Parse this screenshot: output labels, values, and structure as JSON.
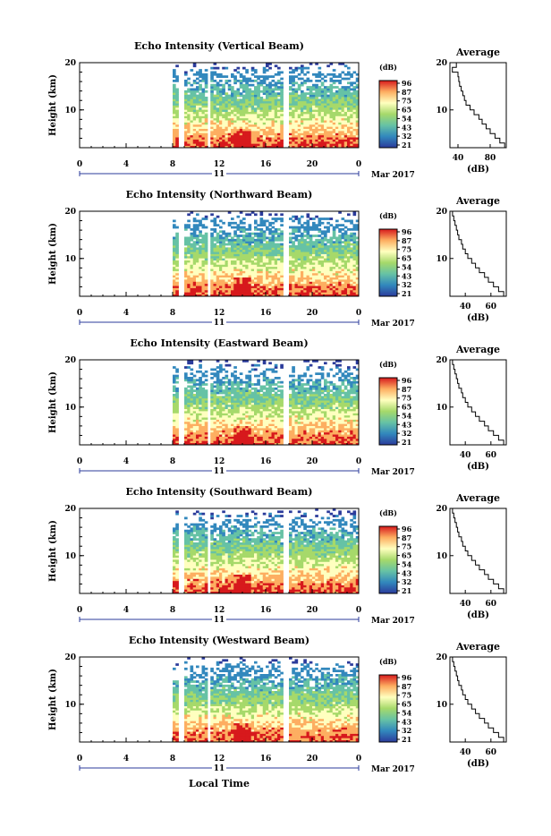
{
  "figure": {
    "x_label": "Local Time",
    "date_label": "Mar 2017",
    "date_marker": "11"
  },
  "colorbar": {
    "unit": "(dB)",
    "ticks": [
      "96",
      "87",
      "75",
      "65",
      "54",
      "43",
      "32",
      "21"
    ],
    "colors": [
      "#d7191c",
      "#fdae61",
      "#ffffbf",
      "#a6d96a",
      "#66c2a5",
      "#3288bd",
      "#2b3b9b"
    ]
  },
  "chart_data": [
    {
      "type": "heatmap",
      "title": "Echo Intensity (Vertical Beam)",
      "ylabel": "Height (km)",
      "xticks": [
        "0",
        "4",
        "8",
        "12",
        "16",
        "20",
        "0"
      ],
      "xlim": [
        0,
        24
      ],
      "ylim": [
        2,
        20
      ],
      "yticks": [
        10,
        20
      ],
      "data_gaps_h": [
        [
          0,
          8.1
        ],
        [
          8.6,
          9.0
        ],
        [
          10.9,
          11.3
        ],
        [
          17.6,
          18.0
        ]
      ],
      "profile": {
        "title": "Average",
        "xlabel": "(dB)",
        "xticks": [
          "40",
          "80"
        ],
        "xlim": [
          30,
          100
        ],
        "heights": [
          2,
          3,
          4,
          5,
          6,
          7,
          8,
          9,
          10,
          11,
          12,
          13,
          14,
          15,
          16,
          17,
          18,
          19,
          20
        ],
        "values": [
          98,
          92,
          86,
          80,
          75,
          70,
          66,
          60,
          55,
          50,
          48,
          46,
          44,
          42,
          41,
          40,
          33,
          38,
          30
        ]
      }
    },
    {
      "type": "heatmap",
      "title": "Echo Intensity (Northward Beam)",
      "ylabel": "Height (km)",
      "xticks": [
        "0",
        "4",
        "8",
        "12",
        "16",
        "20",
        "0"
      ],
      "xlim": [
        0,
        24
      ],
      "ylim": [
        2,
        20
      ],
      "yticks": [
        10,
        20
      ],
      "data_gaps_h": [
        [
          0,
          8.1
        ],
        [
          8.6,
          9.0
        ],
        [
          10.9,
          11.3
        ],
        [
          17.6,
          18.0
        ]
      ],
      "profile": {
        "title": "Average",
        "xlabel": "(dB)",
        "xticks": [
          "40",
          "60"
        ],
        "xlim": [
          28,
          72
        ],
        "heights": [
          2,
          3,
          4,
          5,
          6,
          7,
          8,
          9,
          10,
          11,
          12,
          13,
          14,
          15,
          16,
          17,
          18,
          19,
          20
        ],
        "values": [
          70,
          66,
          62,
          58,
          55,
          51,
          48,
          45,
          42,
          40,
          38,
          37,
          35,
          34,
          33,
          32,
          31,
          30,
          30
        ]
      }
    },
    {
      "type": "heatmap",
      "title": "Echo Intensity (Eastward Beam)",
      "ylabel": "Height (km)",
      "xticks": [
        "0",
        "4",
        "8",
        "12",
        "16",
        "20",
        "0"
      ],
      "xlim": [
        0,
        24
      ],
      "ylim": [
        2,
        20
      ],
      "yticks": [
        10,
        20
      ],
      "data_gaps_h": [
        [
          0,
          8.1
        ],
        [
          8.6,
          9.0
        ],
        [
          10.9,
          11.3
        ],
        [
          17.6,
          18.0
        ]
      ],
      "profile": {
        "title": "Average",
        "xlabel": "(dB)",
        "xticks": [
          "40",
          "60"
        ],
        "xlim": [
          28,
          72
        ],
        "heights": [
          2,
          3,
          4,
          5,
          6,
          7,
          8,
          9,
          10,
          11,
          12,
          13,
          14,
          15,
          16,
          17,
          18,
          19,
          20
        ],
        "values": [
          70,
          66,
          62,
          58,
          55,
          51,
          48,
          45,
          42,
          40,
          38,
          37,
          35,
          34,
          33,
          32,
          31,
          30,
          30
        ]
      }
    },
    {
      "type": "heatmap",
      "title": "Echo Intensity (Southward Beam)",
      "ylabel": "Height (km)",
      "xticks": [
        "0",
        "4",
        "8",
        "12",
        "16",
        "20",
        "0"
      ],
      "xlim": [
        0,
        24
      ],
      "ylim": [
        2,
        20
      ],
      "yticks": [
        10,
        20
      ],
      "data_gaps_h": [
        [
          0,
          8.1
        ],
        [
          8.6,
          9.0
        ],
        [
          10.9,
          11.3
        ],
        [
          17.6,
          18.0
        ]
      ],
      "profile": {
        "title": "Average",
        "xlabel": "(dB)",
        "xticks": [
          "40",
          "60"
        ],
        "xlim": [
          28,
          72
        ],
        "heights": [
          2,
          3,
          4,
          5,
          6,
          7,
          8,
          9,
          10,
          11,
          12,
          13,
          14,
          15,
          16,
          17,
          18,
          19,
          20
        ],
        "values": [
          70,
          66,
          62,
          58,
          55,
          51,
          48,
          45,
          42,
          40,
          38,
          37,
          35,
          34,
          33,
          32,
          31,
          30,
          30
        ]
      }
    },
    {
      "type": "heatmap",
      "title": "Echo Intensity (Westward Beam)",
      "ylabel": "Height (km)",
      "xticks": [
        "0",
        "4",
        "8",
        "12",
        "16",
        "20",
        "0"
      ],
      "xlim": [
        0,
        24
      ],
      "ylim": [
        2,
        20
      ],
      "yticks": [
        10,
        20
      ],
      "data_gaps_h": [
        [
          0,
          8.1
        ],
        [
          8.6,
          9.0
        ],
        [
          10.9,
          11.3
        ],
        [
          17.6,
          18.0
        ]
      ],
      "profile": {
        "title": "Average",
        "xlabel": "(dB)",
        "xticks": [
          "40",
          "60"
        ],
        "xlim": [
          28,
          72
        ],
        "heights": [
          2,
          3,
          4,
          5,
          6,
          7,
          8,
          9,
          10,
          11,
          12,
          13,
          14,
          15,
          16,
          17,
          18,
          19,
          20
        ],
        "values": [
          70,
          66,
          62,
          58,
          55,
          51,
          48,
          45,
          42,
          40,
          38,
          37,
          35,
          34,
          33,
          32,
          31,
          30,
          30
        ]
      }
    }
  ]
}
